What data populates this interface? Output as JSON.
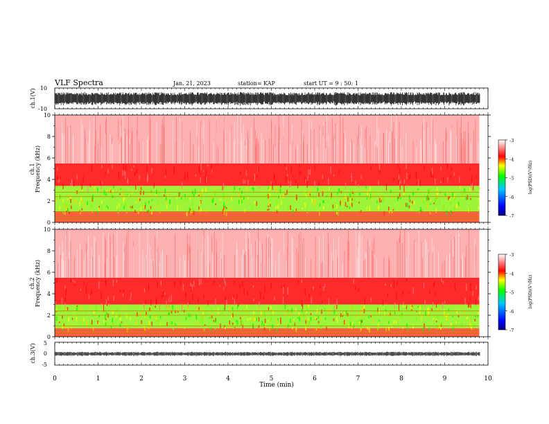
{
  "header": {
    "title": "VLF Spectra",
    "date": "Jan. 21, 2023",
    "station": "station= KAP",
    "start": "start  UT =  9 : 50: 1"
  },
  "chart_data": [
    {
      "type": "line",
      "name": "ch1-waveform",
      "ylabel": "ch.1(V)",
      "ylim": [
        -10,
        10
      ],
      "yticks": [
        "10",
        "-10"
      ],
      "xlim": [
        0,
        10
      ]
    },
    {
      "type": "heatmap",
      "name": "ch1-spectrogram",
      "ylabel_top": "ch.1",
      "ylabel": "Frequency  (kHz)",
      "ylim": [
        0,
        10
      ],
      "yticks": [
        "0",
        "2",
        "4",
        "6",
        "8",
        "10"
      ],
      "xlim": [
        0,
        9.8
      ],
      "colorbar": {
        "label": "log(PSD)(V²/Hz)",
        "range": [
          -7,
          -3
        ],
        "ticks": [
          "-3",
          "-4",
          "-5",
          "-6",
          "-7"
        ]
      },
      "bands_khz": [
        {
          "from": 0,
          "to": 1.0,
          "level": "mixed"
        },
        {
          "from": 1.0,
          "to": 3.4,
          "level": "green-yellow"
        },
        {
          "from": 3.4,
          "to": 5.5,
          "level": "red"
        },
        {
          "from": 5.5,
          "to": 10,
          "level": "faint-red"
        }
      ]
    },
    {
      "type": "heatmap",
      "name": "ch2-spectrogram",
      "ylabel_top": "ch.2",
      "ylabel": "Frequency  (kHz)",
      "ylim": [
        0,
        10
      ],
      "yticks": [
        "0",
        "2",
        "4",
        "6",
        "8",
        "10"
      ],
      "xlim": [
        0,
        9.8
      ],
      "colorbar": {
        "label": "log(PSD)(V²/Hz)",
        "range": [
          -7,
          -3
        ],
        "ticks": [
          "-3",
          "-4",
          "-5",
          "-6",
          "-7"
        ]
      },
      "bands_khz": [
        {
          "from": 0,
          "to": 0.8,
          "level": "mixed"
        },
        {
          "from": 0.8,
          "to": 3.0,
          "level": "green-yellow"
        },
        {
          "from": 3.0,
          "to": 5.5,
          "level": "red"
        },
        {
          "from": 5.5,
          "to": 10,
          "level": "faint-red"
        }
      ]
    },
    {
      "type": "line",
      "name": "ch3-waveform",
      "ylabel": "ch.3(V)",
      "ylim": [
        -5,
        5
      ],
      "yticks": [
        "5",
        "0",
        "-5"
      ],
      "xlim": [
        0,
        10
      ]
    }
  ],
  "xaxis": {
    "label": "Time  (min)",
    "ticks": [
      "0",
      "1",
      "2",
      "3",
      "4",
      "5",
      "6",
      "7",
      "8",
      "9",
      "10"
    ],
    "range": [
      0,
      10
    ]
  },
  "colors": {
    "colormap": [
      "#00007f",
      "#0000ff",
      "#00c8ff",
      "#00ff00",
      "#ffff00",
      "#ff0000",
      "#ffffff"
    ],
    "red": "#ff0000",
    "green": "#7cfc00",
    "yellow": "#ffe000"
  }
}
